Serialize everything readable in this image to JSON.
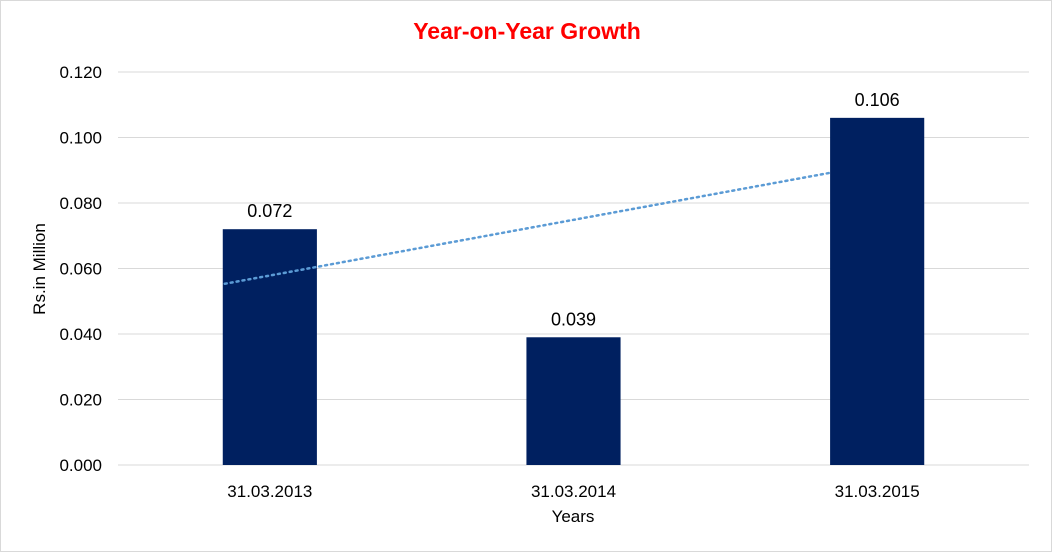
{
  "chart_data": {
    "type": "bar",
    "title": "Year-on-Year Growth",
    "xlabel": "Years",
    "ylabel": "Rs.in Million",
    "categories": [
      "31.03.2013",
      "31.03.2014",
      "31.03.2015"
    ],
    "values": [
      0.072,
      0.039,
      0.106
    ],
    "data_labels": [
      "0.072",
      "0.039",
      "0.106"
    ],
    "ylim": [
      0,
      0.12
    ],
    "yticks": [
      "0.000",
      "0.020",
      "0.040",
      "0.060",
      "0.080",
      "0.100",
      "0.120"
    ],
    "grid": true,
    "legend": "none",
    "trendline": {
      "type": "linear",
      "style": "dotted"
    },
    "colors": {
      "bar": "#002060",
      "trendline": "#5b9bd5",
      "title": "#ff0000",
      "grid": "#d9d9d9"
    }
  }
}
